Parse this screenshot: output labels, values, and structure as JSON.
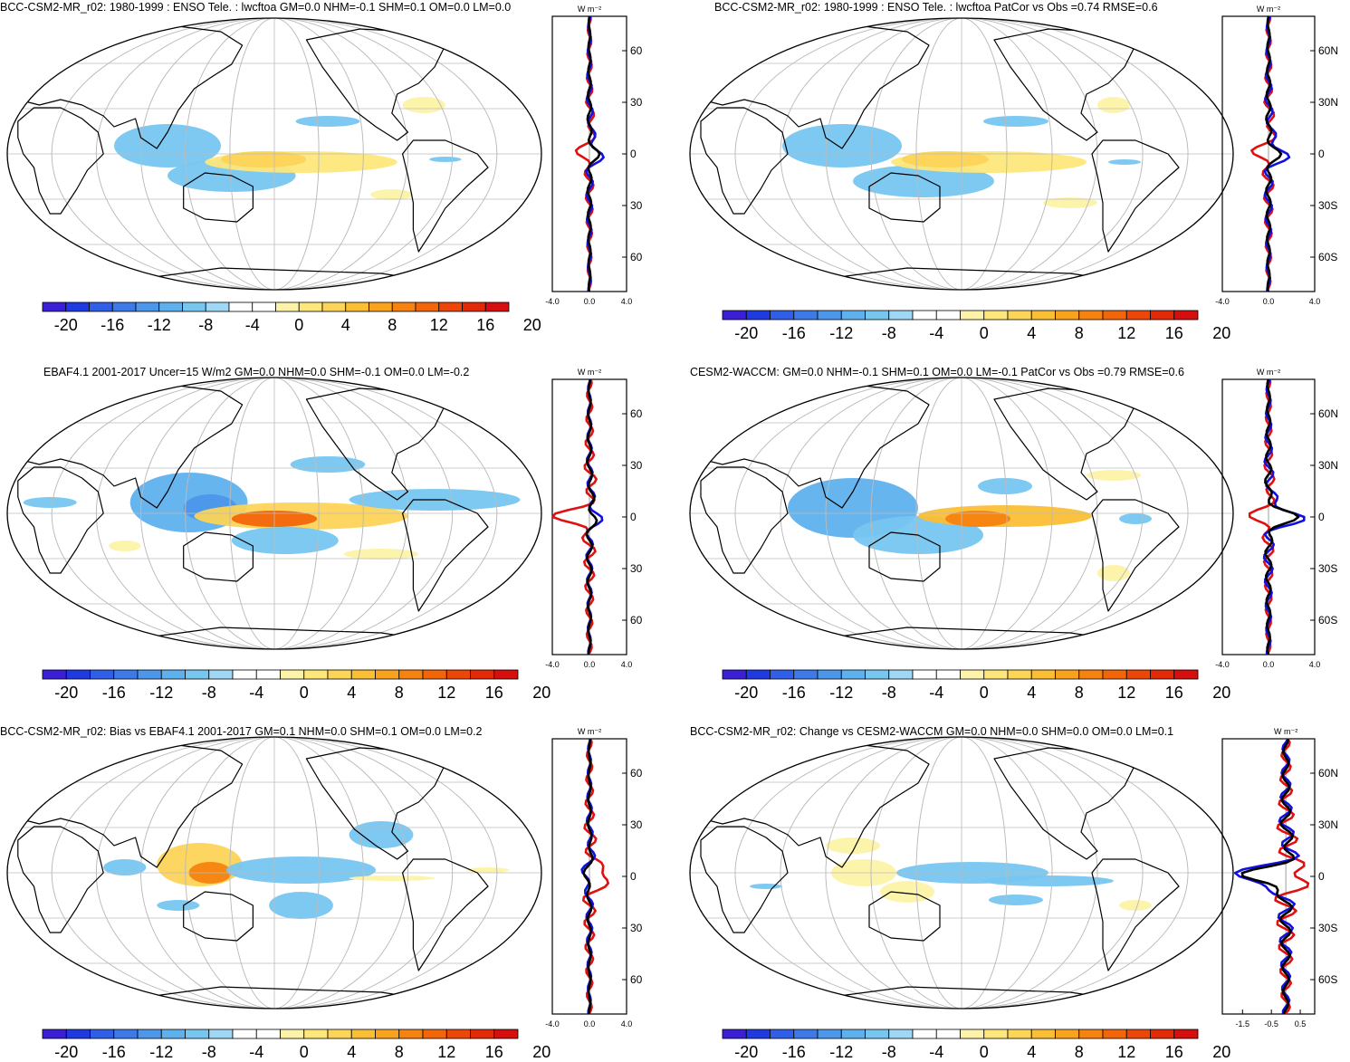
{
  "chart_data": [
    {
      "type": "heatmap",
      "title": "BCC-CSM2-MR_r02: 1980-1999 : ENSO Tele. : lwcftoa GM=0.0 NHM=-0.1 SHM=0.1 OM=0.0 LM=0.0",
      "variable": "lwcftoa",
      "units_label": "W m⁻²",
      "colorbar_ticks": [
        "-20",
        "-16",
        "-12",
        "-8",
        "-4",
        "0",
        "4",
        "8",
        "12",
        "16",
        "20"
      ],
      "zonal_xticks": [
        "-4.0",
        "0.0",
        "4.0"
      ],
      "zonal_xlim": [
        -4.0,
        4.0
      ],
      "lat_ticks": [
        "60N",
        "30N",
        "0",
        "30S",
        "60S"
      ]
    },
    {
      "type": "heatmap",
      "title": "BCC-CSM2-MR_r02: 1980-1999 : ENSO Tele. : lwcftoa PatCor vs Obs =0.74 RMSE=0.6",
      "variable": "lwcftoa",
      "units_label": "W m⁻²",
      "colorbar_ticks": [
        "-20",
        "-16",
        "-12",
        "-8",
        "-4",
        "0",
        "4",
        "8",
        "12",
        "16",
        "20"
      ],
      "zonal_xticks": [
        "-4.0",
        "0.0",
        "4.0"
      ],
      "zonal_xlim": [
        -4.0,
        4.0
      ],
      "lat_ticks": [
        "60N",
        "30N",
        "0",
        "30S",
        "60S"
      ]
    },
    {
      "type": "heatmap",
      "title": "EBAF4.1 2001-2017 Uncer=15 W/m2 GM=0.0 NHM=0.0 SHM=-0.1 OM=0.0 LM=-0.2",
      "variable": "lwcftoa",
      "units_label": "W m⁻²",
      "colorbar_ticks": [
        "-20",
        "-16",
        "-12",
        "-8",
        "-4",
        "0",
        "4",
        "8",
        "12",
        "16",
        "20"
      ],
      "zonal_xticks": [
        "-4.0",
        "0.0",
        "4.0"
      ],
      "zonal_xlim": [
        -4.0,
        4.0
      ],
      "lat_ticks": [
        "60N",
        "30N",
        "0",
        "30S",
        "60S"
      ]
    },
    {
      "type": "heatmap",
      "title": "CESM2-WACCM: GM=0.0 NHM=-0.1 SHM=0.1 OM=0.0 LM=-0.1 PatCor vs Obs =0.79 RMSE=0.6",
      "variable": "lwcftoa",
      "units_label": "W m⁻²",
      "colorbar_ticks": [
        "-20",
        "-16",
        "-12",
        "-8",
        "-4",
        "0",
        "4",
        "8",
        "12",
        "16",
        "20"
      ],
      "zonal_xticks": [
        "-4.0",
        "0.0",
        "4.0"
      ],
      "zonal_xlim": [
        -4.0,
        4.0
      ],
      "lat_ticks": [
        "60N",
        "30N",
        "0",
        "30S",
        "60S"
      ]
    },
    {
      "type": "heatmap",
      "title": "BCC-CSM2-MR_r02: Bias vs EBAF4.1 2001-2017 GM=0.1 NHM=0.0 SHM=0.1 OM=0.0 LM=0.2",
      "variable": "lwcftoa",
      "units_label": "W m⁻²",
      "colorbar_ticks": [
        "-20",
        "-16",
        "-12",
        "-8",
        "-4",
        "0",
        "4",
        "8",
        "12",
        "16",
        "20"
      ],
      "zonal_xticks": [
        "-4.0",
        "0.0",
        "4.0"
      ],
      "zonal_xlim": [
        -4.0,
        4.0
      ],
      "lat_ticks": [
        "60N",
        "30N",
        "0",
        "30S",
        "60S"
      ]
    },
    {
      "type": "heatmap",
      "title": "BCC-CSM2-MR_r02: Change vs CESM2-WACCM GM=0.0 NHM=0.0 SHM=0.0 OM=0.0 LM=0.1",
      "variable": "lwcftoa",
      "units_label": "W m⁻²",
      "colorbar_ticks": [
        "-20",
        "-16",
        "-12",
        "-8",
        "-4",
        "0",
        "4",
        "8",
        "12",
        "16",
        "20"
      ],
      "zonal_xticks": [
        "-1.5",
        "-0.5",
        "0.5"
      ],
      "zonal_xlim": [
        -2.2,
        1.0
      ],
      "lat_ticks": [
        "60N",
        "30N",
        "0",
        "30S",
        "60S"
      ]
    }
  ],
  "colors": {
    "scale": [
      "#3a1fd6",
      "#1f3ae0",
      "#2f5fe6",
      "#3d7ae8",
      "#4c97ea",
      "#5fb1ee",
      "#77c6f0",
      "#9fd8f4",
      "#ffffff",
      "#ffffff",
      "#fdf3a8",
      "#fde77a",
      "#fcd457",
      "#fbbf36",
      "#f9a21d",
      "#f6830f",
      "#f26609",
      "#ec4608",
      "#e32a08",
      "#d50e0e"
    ],
    "zonal_model": "#e01010",
    "zonal_obs": "#1010e0",
    "zonal_diff": "#000000",
    "land_outline": "#000000",
    "grid": "#bbbbbb"
  }
}
